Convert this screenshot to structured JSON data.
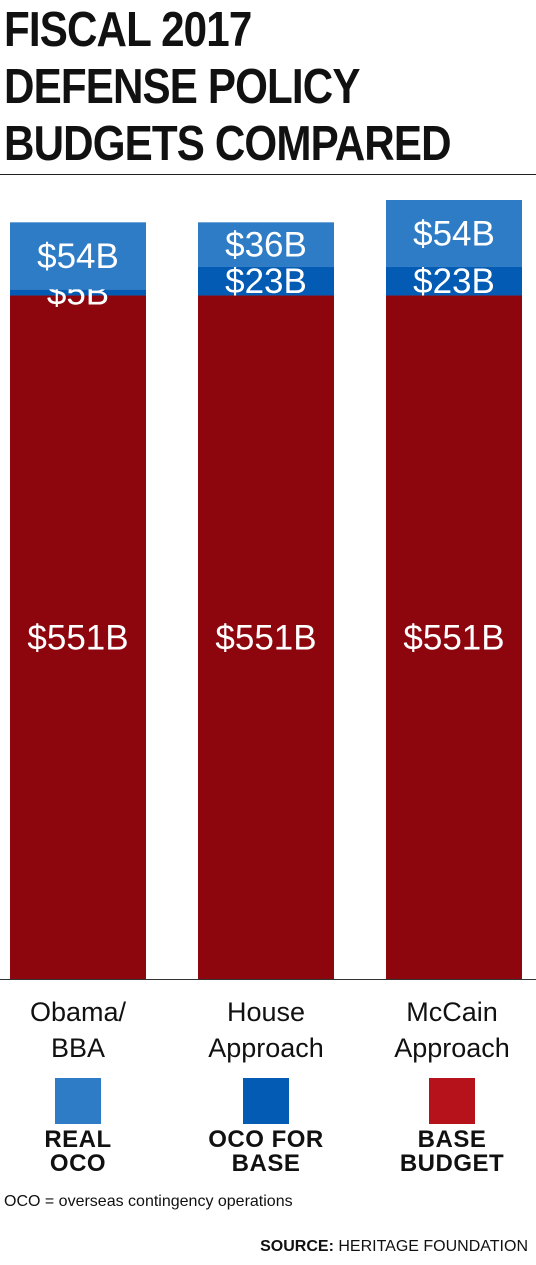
{
  "chart_data": {
    "type": "bar",
    "stacked": true,
    "title": "FISCAL 2017\nDEFENSE POLICY\nBUDGETS COMPARED",
    "categories": [
      "Obama/\nBBA",
      "House\nApproach",
      "McCain\nApproach"
    ],
    "series": [
      {
        "name": "BASE BUDGET",
        "color": "#8e060d",
        "values": [
          551,
          551,
          551
        ],
        "labels": [
          "$551B",
          "$551B",
          "$551B"
        ]
      },
      {
        "name": "OCO FOR BASE",
        "color": "#045bb4",
        "values": [
          5,
          23,
          23
        ],
        "labels": [
          "$5B",
          "$23B",
          "$23B"
        ]
      },
      {
        "name": "REAL OCO",
        "color": "#2e7cc6",
        "values": [
          54,
          36,
          54
        ],
        "labels": [
          "$54B",
          "$36B",
          "$54B"
        ]
      }
    ],
    "legend_placement": "bottom",
    "grid": false
  },
  "legend": [
    {
      "label": "REAL\nOCO",
      "color": "#2e7cc6"
    },
    {
      "label": "OCO FOR\nBASE",
      "color": "#045bb4"
    },
    {
      "label": "BASE\nBUDGET",
      "color": "#b5121b"
    }
  ],
  "note": "OCO = overseas contingency operations",
  "source": {
    "key": "SOURCE:",
    "value": "HERITAGE FOUNDATION"
  }
}
